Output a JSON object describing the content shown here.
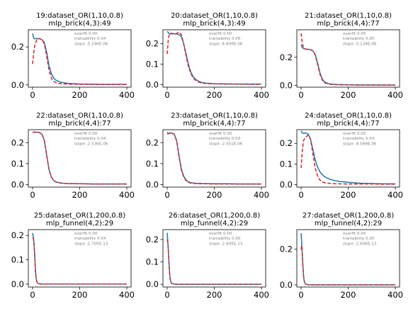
{
  "chart_data": [
    {
      "type": "line",
      "title": [
        "19:dataset_OR(1,10,0.8)",
        "mlp_brick(4,3):49"
      ],
      "annotations": [
        "overfit 0.00",
        "trainability 0.04",
        "slope -5.196E-06"
      ],
      "xticks": [
        0,
        200,
        400
      ],
      "yticks": [
        0.0,
        0.2
      ],
      "ylim": [
        -0.012,
        0.29
      ],
      "xlim": [
        -18,
        418
      ],
      "series": [
        {
          "style": "solid",
          "color": "#1f77b4",
          "x": [
            0,
            5,
            10,
            20,
            30,
            40,
            50,
            60,
            70,
            80,
            90,
            100,
            120,
            150,
            200,
            250,
            300,
            350,
            400
          ],
          "y": [
            0.27,
            0.245,
            0.243,
            0.244,
            0.243,
            0.238,
            0.222,
            0.17,
            0.1,
            0.058,
            0.035,
            0.024,
            0.014,
            0.008,
            0.005,
            0.004,
            0.003,
            0.003,
            0.003
          ]
        },
        {
          "style": "dashed",
          "color": "#d62728",
          "x": [
            0,
            5,
            10,
            20,
            30,
            40,
            50,
            60,
            70,
            80,
            90,
            100,
            120,
            150,
            200,
            250,
            300,
            350,
            400
          ],
          "y": [
            0.11,
            0.17,
            0.215,
            0.242,
            0.244,
            0.238,
            0.215,
            0.15,
            0.075,
            0.035,
            0.018,
            0.011,
            0.006,
            0.004,
            0.003,
            0.003,
            0.002,
            0.002,
            0.002
          ]
        }
      ]
    },
    {
      "type": "line",
      "title": [
        "20:dataset_OR(1,10,0.8)",
        "mlp_brick(4,3):49"
      ],
      "annotations": [
        "overfit 0.00",
        "trainability 0.06",
        "slope -6.809E-06"
      ],
      "xticks": [
        0,
        200,
        400
      ],
      "yticks": [
        0.0,
        0.1,
        0.2
      ],
      "ylim": [
        -0.012,
        0.268
      ],
      "xlim": [
        -18,
        418
      ],
      "series": [
        {
          "style": "solid",
          "color": "#1f77b4",
          "x": [
            0,
            10,
            20,
            30,
            40,
            50,
            60,
            70,
            80,
            90,
            100,
            110,
            120,
            140,
            160,
            200,
            250,
            300,
            350,
            400
          ],
          "y": [
            0.26,
            0.248,
            0.248,
            0.248,
            0.247,
            0.245,
            0.235,
            0.2,
            0.15,
            0.1,
            0.062,
            0.04,
            0.026,
            0.013,
            0.008,
            0.005,
            0.004,
            0.003,
            0.003,
            0.003
          ]
        },
        {
          "style": "dashed",
          "color": "#d62728",
          "x": [
            0,
            5,
            10,
            20,
            30,
            40,
            50,
            60,
            70,
            80,
            90,
            100,
            110,
            120,
            140,
            160,
            200,
            250,
            300,
            350,
            400
          ],
          "y": [
            0.15,
            0.225,
            0.25,
            0.25,
            0.249,
            0.25,
            0.257,
            0.245,
            0.2,
            0.14,
            0.09,
            0.055,
            0.034,
            0.022,
            0.01,
            0.006,
            0.004,
            0.003,
            0.003,
            0.002,
            0.002
          ]
        }
      ]
    },
    {
      "type": "line",
      "title": [
        "21:dataset_OR(1,10,0.8)",
        "mlp_brick(4,4):77"
      ],
      "annotations": [
        "overfit 0.00",
        "trainability 0.05",
        "slope -3.128E-06"
      ],
      "xticks": [
        0,
        200,
        400
      ],
      "yticks": [
        0.0,
        0.2
      ],
      "ylim": [
        -0.012,
        0.395
      ],
      "xlim": [
        -18,
        418
      ],
      "series": [
        {
          "style": "solid",
          "color": "#1f77b4",
          "x": [
            0,
            5,
            10,
            15,
            20,
            30,
            40,
            50,
            60,
            70,
            80,
            90,
            100,
            120,
            150,
            200,
            250,
            300,
            350,
            400
          ],
          "y": [
            0.29,
            0.27,
            0.262,
            0.259,
            0.258,
            0.256,
            0.253,
            0.245,
            0.22,
            0.16,
            0.09,
            0.045,
            0.024,
            0.011,
            0.007,
            0.005,
            0.004,
            0.004,
            0.003,
            0.003
          ]
        },
        {
          "style": "dashed",
          "color": "#d62728",
          "x": [
            0,
            5,
            10,
            15,
            20,
            30,
            40,
            50,
            60,
            70,
            80,
            90,
            100,
            120,
            150,
            200,
            250,
            300,
            350,
            400
          ],
          "y": [
            0.37,
            0.3,
            0.27,
            0.262,
            0.258,
            0.256,
            0.253,
            0.245,
            0.215,
            0.15,
            0.08,
            0.038,
            0.019,
            0.009,
            0.005,
            0.004,
            0.003,
            0.003,
            0.003,
            0.003
          ]
        }
      ]
    },
    {
      "type": "line",
      "title": [
        "22:dataset_OR(1,10,0.8)",
        "mlp_brick(4,4):77"
      ],
      "annotations": [
        "overfit 0.00",
        "trainability 0.04",
        "slope -2.536E-06"
      ],
      "xticks": [
        0,
        200,
        400
      ],
      "yticks": [
        0.0,
        0.1,
        0.2
      ],
      "ylim": [
        -0.012,
        0.262
      ],
      "xlim": [
        -18,
        418
      ],
      "series": [
        {
          "style": "solid",
          "color": "#1f77b4",
          "x": [
            0,
            10,
            20,
            30,
            40,
            50,
            60,
            70,
            80,
            90,
            100,
            120,
            150,
            200,
            250,
            300,
            350,
            400
          ],
          "y": [
            0.25,
            0.25,
            0.25,
            0.248,
            0.24,
            0.21,
            0.14,
            0.07,
            0.035,
            0.019,
            0.012,
            0.007,
            0.005,
            0.004,
            0.003,
            0.003,
            0.003,
            0.003
          ]
        },
        {
          "style": "dashed",
          "color": "#d62728",
          "x": [
            0,
            10,
            20,
            30,
            40,
            50,
            60,
            70,
            80,
            90,
            100,
            120,
            150,
            200,
            250,
            300,
            350,
            400
          ],
          "y": [
            0.25,
            0.25,
            0.25,
            0.248,
            0.24,
            0.21,
            0.14,
            0.07,
            0.035,
            0.019,
            0.012,
            0.007,
            0.005,
            0.004,
            0.003,
            0.003,
            0.003,
            0.003
          ]
        }
      ]
    },
    {
      "type": "line",
      "title": [
        "23:dataset_OR(1,10,0.8)",
        "mlp_brick(4,4):77"
      ],
      "annotations": [
        "overfit 0.00",
        "trainability 0.03",
        "slope -2.551E-06"
      ],
      "xticks": [
        0,
        200,
        400
      ],
      "yticks": [
        0.0,
        0.1,
        0.2
      ],
      "ylim": [
        -0.012,
        0.262
      ],
      "xlim": [
        -18,
        418
      ],
      "series": [
        {
          "style": "solid",
          "color": "#1f77b4",
          "x": [
            0,
            5,
            10,
            20,
            30,
            40,
            50,
            60,
            70,
            80,
            90,
            100,
            120,
            150,
            200,
            250,
            300,
            350,
            400
          ],
          "y": [
            0.25,
            0.243,
            0.245,
            0.246,
            0.24,
            0.21,
            0.14,
            0.075,
            0.04,
            0.022,
            0.013,
            0.009,
            0.006,
            0.005,
            0.004,
            0.004,
            0.003,
            0.003,
            0.003
          ]
        },
        {
          "style": "dashed",
          "color": "#d62728",
          "x": [
            0,
            5,
            10,
            20,
            30,
            40,
            50,
            60,
            70,
            80,
            90,
            100,
            120,
            150,
            200,
            250,
            300,
            350,
            400
          ],
          "y": [
            0.24,
            0.243,
            0.246,
            0.246,
            0.24,
            0.208,
            0.135,
            0.07,
            0.036,
            0.019,
            0.011,
            0.007,
            0.005,
            0.004,
            0.003,
            0.003,
            0.003,
            0.003,
            0.003
          ]
        }
      ]
    },
    {
      "type": "line",
      "title": [
        "24:dataset_OR(1,10,0.8)",
        "mlp_brick(4,4):77"
      ],
      "annotations": [
        "overfit 0.00",
        "trainability 0.03",
        "slope -8.589E-06"
      ],
      "xticks": [
        0,
        200,
        400
      ],
      "yticks": [
        0.0,
        0.1,
        0.2
      ],
      "ylim": [
        -0.012,
        0.266
      ],
      "xlim": [
        -18,
        418
      ],
      "series": [
        {
          "style": "solid",
          "color": "#1f77b4",
          "x": [
            0,
            5,
            10,
            20,
            30,
            40,
            50,
            60,
            70,
            80,
            90,
            100,
            120,
            140,
            160,
            200,
            250,
            300,
            350,
            400
          ],
          "y": [
            0.26,
            0.25,
            0.248,
            0.25,
            0.245,
            0.22,
            0.17,
            0.12,
            0.085,
            0.062,
            0.048,
            0.038,
            0.027,
            0.02,
            0.016,
            0.011,
            0.007,
            0.005,
            0.004,
            0.004
          ]
        },
        {
          "style": "dashed",
          "color": "#d62728",
          "x": [
            0,
            5,
            10,
            15,
            20,
            30,
            40,
            50,
            60,
            70,
            80,
            90,
            100,
            120,
            150,
            200,
            250,
            300,
            350,
            400
          ],
          "y": [
            0.08,
            0.16,
            0.21,
            0.225,
            0.23,
            0.24,
            0.22,
            0.15,
            0.08,
            0.042,
            0.022,
            0.013,
            0.009,
            0.006,
            0.004,
            0.003,
            0.003,
            0.003,
            0.002,
            0.002
          ]
        }
      ]
    },
    {
      "type": "line",
      "title": [
        "25:dataset_OR(1,200,0.8)",
        "mlp_funnel(4,2):29"
      ],
      "annotations": [
        "overfit 0.00",
        "trainability 0.04",
        "slope -2.705E-13"
      ],
      "xticks": [
        0,
        200,
        400
      ],
      "yticks": [
        0.0,
        0.1,
        0.2
      ],
      "ylim": [
        -0.012,
        0.224
      ],
      "xlim": [
        -18,
        418
      ],
      "series": [
        {
          "style": "solid",
          "color": "#1f77b4",
          "x": [
            0,
            3,
            6,
            9,
            12,
            15,
            18,
            22,
            26,
            30,
            40,
            60,
            100,
            200,
            300,
            400
          ],
          "y": [
            0.21,
            0.195,
            0.17,
            0.12,
            0.06,
            0.025,
            0.01,
            0.004,
            0.002,
            0.001,
            0.0005,
            0.0003,
            0.0002,
            0.0002,
            0.0002,
            0.0002
          ]
        },
        {
          "style": "dashed",
          "color": "#d62728",
          "x": [
            0,
            3,
            6,
            9,
            12,
            15,
            18,
            22,
            26,
            30,
            40,
            60,
            100,
            200,
            300,
            400
          ],
          "y": [
            0.19,
            0.19,
            0.165,
            0.115,
            0.055,
            0.022,
            0.009,
            0.004,
            0.002,
            0.001,
            0.0005,
            0.0003,
            0.0002,
            0.0002,
            0.0002,
            0.0002
          ]
        }
      ]
    },
    {
      "type": "line",
      "title": [
        "26:dataset_OR(1,200,0.8)",
        "mlp_funnel(4,2):29"
      ],
      "annotations": [
        "overfit 0.00",
        "trainability 0.00",
        "slope -2.845E-13"
      ],
      "xticks": [
        0,
        200,
        400
      ],
      "yticks": [
        0.0,
        0.1,
        0.2
      ],
      "ylim": [
        -0.012,
        0.244
      ],
      "xlim": [
        -18,
        418
      ],
      "series": [
        {
          "style": "solid",
          "color": "#1f77b4",
          "x": [
            0,
            2,
            4,
            6,
            8,
            10,
            12,
            15,
            18,
            22,
            26,
            30,
            40,
            60,
            100,
            200,
            300,
            400
          ],
          "y": [
            0.23,
            0.2,
            0.17,
            0.13,
            0.09,
            0.055,
            0.03,
            0.013,
            0.006,
            0.003,
            0.002,
            0.001,
            0.0005,
            0.0003,
            0.0002,
            0.0002,
            0.0002,
            0.0002
          ]
        },
        {
          "style": "dashed",
          "color": "#d62728",
          "x": [
            0,
            2,
            4,
            6,
            8,
            10,
            12,
            15,
            18,
            22,
            26,
            30,
            40,
            60,
            100,
            200,
            300,
            400
          ],
          "y": [
            0.2,
            0.19,
            0.165,
            0.125,
            0.085,
            0.05,
            0.027,
            0.012,
            0.005,
            0.003,
            0.002,
            0.001,
            0.0005,
            0.0003,
            0.0002,
            0.0002,
            0.0002,
            0.0002
          ]
        }
      ]
    },
    {
      "type": "line",
      "title": [
        "27:dataset_OR(1,200,0.8)",
        "mlp_funnel(4,2):29"
      ],
      "annotations": [
        "overfit 0.00",
        "trainability 0.00",
        "slope -2.606E-13"
      ],
      "xticks": [
        0,
        200,
        400
      ],
      "yticks": [
        0.0,
        0.2
      ],
      "ylim": [
        -0.012,
        0.31
      ],
      "xlim": [
        -18,
        418
      ],
      "series": [
        {
          "style": "solid",
          "color": "#1f77b4",
          "x": [
            0,
            2,
            4,
            6,
            8,
            10,
            12,
            15,
            18,
            22,
            26,
            30,
            40,
            60,
            100,
            200,
            300,
            400
          ],
          "y": [
            0.29,
            0.25,
            0.2,
            0.15,
            0.1,
            0.06,
            0.032,
            0.014,
            0.006,
            0.003,
            0.002,
            0.001,
            0.0005,
            0.0003,
            0.0002,
            0.0002,
            0.0002,
            0.0002
          ]
        },
        {
          "style": "dashed",
          "color": "#d62728",
          "x": [
            0,
            2,
            4,
            6,
            8,
            10,
            12,
            15,
            18,
            22,
            26,
            30,
            40,
            60,
            100,
            200,
            300,
            400
          ],
          "y": [
            0.2,
            0.22,
            0.19,
            0.145,
            0.095,
            0.057,
            0.03,
            0.013,
            0.006,
            0.003,
            0.002,
            0.001,
            0.0005,
            0.0003,
            0.0002,
            0.0002,
            0.0002,
            0.0002
          ]
        }
      ]
    }
  ]
}
